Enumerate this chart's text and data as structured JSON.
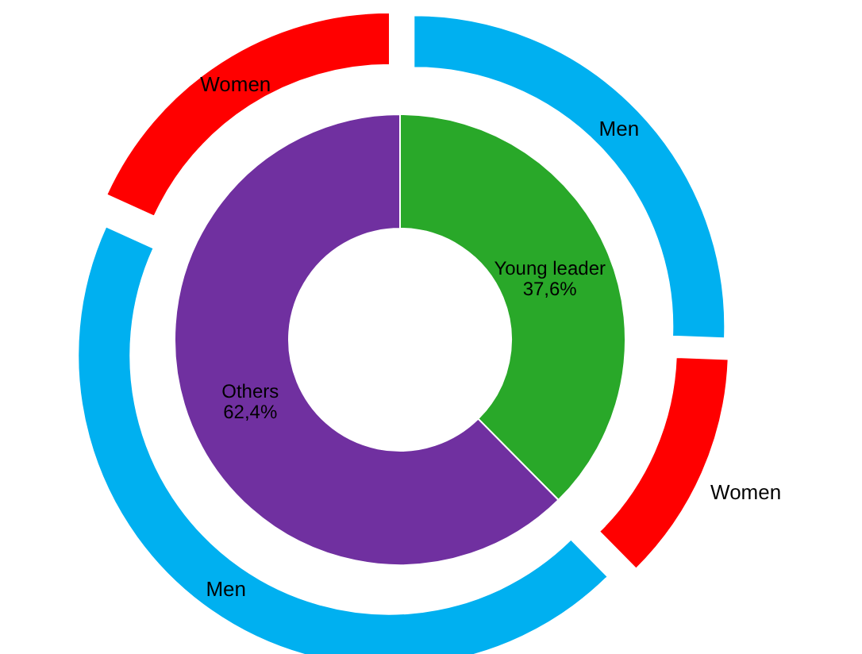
{
  "chart_data": [
    {
      "type": "donut",
      "categories": [
        "Young leader",
        "Others"
      ],
      "values": [
        37.6,
        62.4
      ],
      "colors": [
        "#29a829",
        "#7030a0"
      ],
      "value_labels": [
        "37,6%",
        "62,4%"
      ]
    },
    {
      "type": "donut",
      "categories": [
        "Men",
        "Women",
        "Men",
        "Women"
      ],
      "values": [
        25.6,
        12,
        44.2,
        18.2
      ],
      "colors": [
        "#00b0f0",
        "#ff0000",
        "#00b0f0",
        "#ff0000"
      ]
    }
  ]
}
